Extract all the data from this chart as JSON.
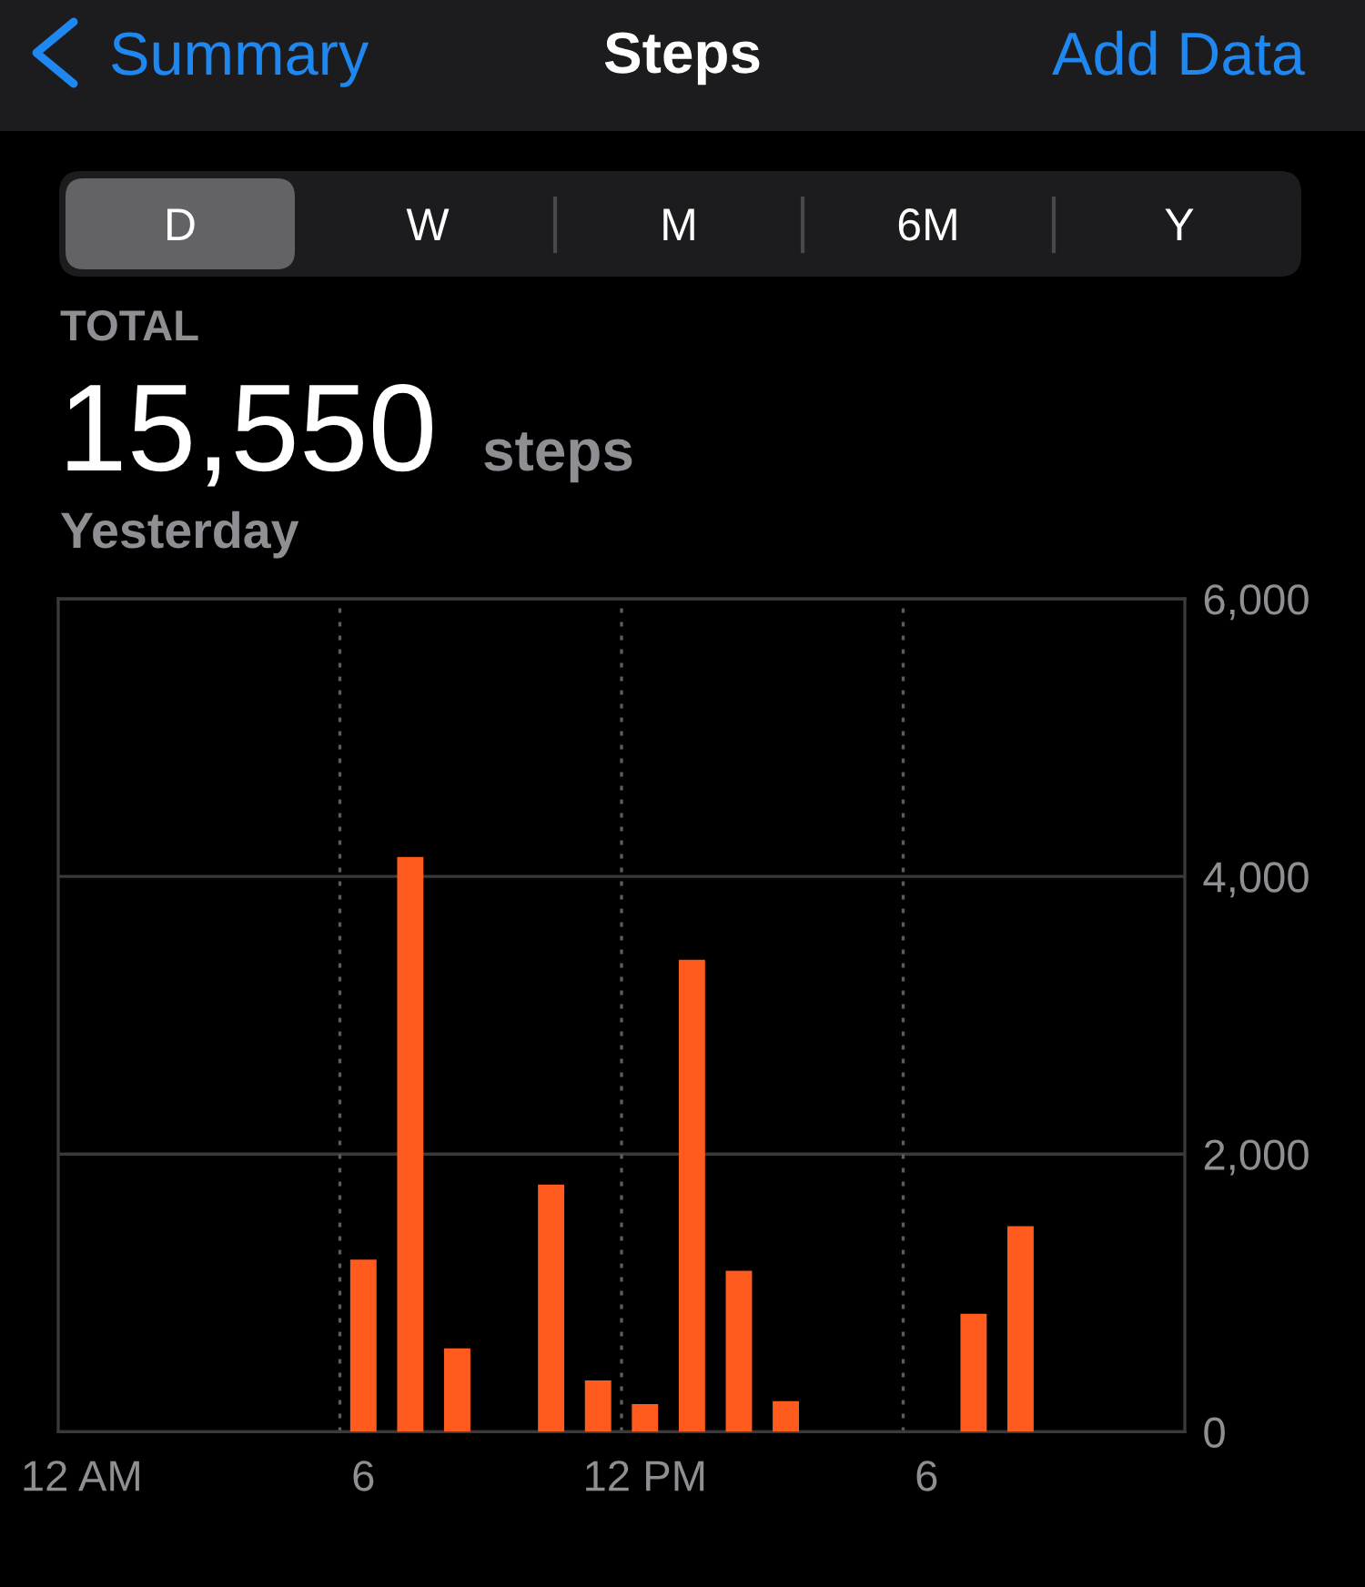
{
  "chart_data": {
    "type": "bar",
    "title": "Steps",
    "annotations": [
      "Summary",
      "Add Data",
      "D",
      "W",
      "M",
      "6M",
      "Y",
      "TOTAL",
      "15,550",
      "steps",
      "Yesterday"
    ],
    "categories": [
      "12 AM",
      null,
      null,
      null,
      null,
      null,
      "6",
      null,
      null,
      null,
      null,
      null,
      "12 PM",
      null,
      null,
      null,
      null,
      null,
      "6",
      null,
      null,
      null,
      null,
      null
    ],
    "values": [
      null,
      null,
      null,
      null,
      null,
      null,
      1240,
      4140,
      600,
      null,
      1780,
      370,
      200,
      3400,
      1160,
      220,
      null,
      null,
      null,
      850,
      1480,
      null,
      null,
      null
    ],
    "color": "#ff5b1e",
    "ylim": [
      0,
      6000
    ],
    "yticks": [
      0,
      {
        "value": 2000,
        "label": "2,000"
      },
      {
        "value": 4000,
        "label": "4,000"
      },
      {
        "value": 6000,
        "label": "6,000"
      }
    ],
    "grid": true
  }
}
